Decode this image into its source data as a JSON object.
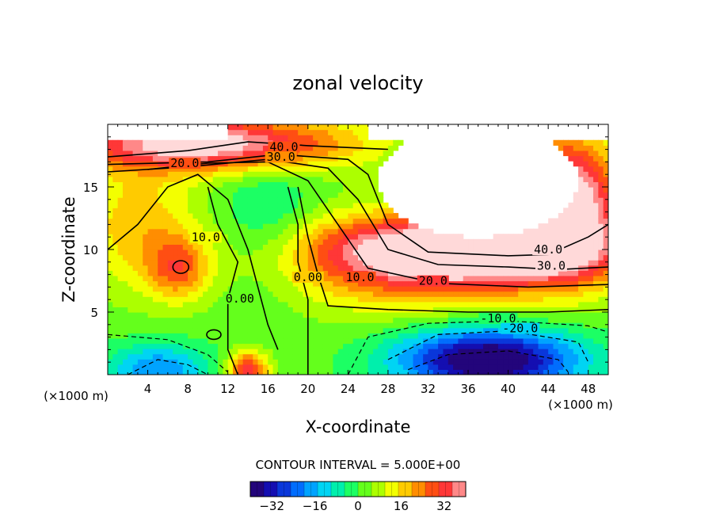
{
  "chart_data": {
    "type": "heatmap",
    "title": "zonal velocity",
    "xlabel": "X-coordinate",
    "ylabel": "Z-coordinate",
    "x_unit_left": "(×1000 m)",
    "x_unit_right": "(×1000 m)",
    "xlim": [
      0,
      50
    ],
    "ylim": [
      0,
      20
    ],
    "x_ticks": [
      "4",
      "8",
      "12",
      "16",
      "20",
      "24",
      "28",
      "32",
      "36",
      "40",
      "44",
      "48"
    ],
    "x_tick_values": [
      4,
      8,
      12,
      16,
      20,
      24,
      28,
      32,
      36,
      40,
      44,
      48
    ],
    "y_ticks": [
      "5",
      "10",
      "15"
    ],
    "y_tick_values": [
      5,
      10,
      15
    ],
    "contour_interval_label": "CONTOUR INTERVAL = 5.000E+00",
    "contour_interval": 5,
    "contour_labels": [
      {
        "text": "40.0",
        "x": 17.6,
        "y": 18.0
      },
      {
        "text": "30.0",
        "x": 17.3,
        "y": 17.2
      },
      {
        "text": "20.0",
        "x": 7.7,
        "y": 16.7
      },
      {
        "text": "10.0",
        "x": 9.8,
        "y": 10.8
      },
      {
        "text": "0.00",
        "x": 20.0,
        "y": 7.6
      },
      {
        "text": "0.00",
        "x": 13.2,
        "y": 5.9
      },
      {
        "text": "10.0",
        "x": 25.2,
        "y": 7.6
      },
      {
        "text": "20.0",
        "x": 32.5,
        "y": 7.3
      },
      {
        "text": "40.0",
        "x": 44.0,
        "y": 9.8
      },
      {
        "text": "30.0",
        "x": 44.3,
        "y": 8.5
      },
      {
        "text": "-10.0",
        "x": 39.0,
        "y": 4.3
      },
      {
        "text": "-20.0",
        "x": 41.2,
        "y": 3.5
      }
    ],
    "colorbar": {
      "range": [
        -40,
        40
      ],
      "ticks": [
        "-32",
        "-16",
        "0",
        "16",
        "32"
      ],
      "tick_values": [
        -32,
        -16,
        0,
        16,
        32
      ]
    },
    "colorscale": [
      "#2a0060",
      "#1010c0",
      "#0070ff",
      "#00d0ff",
      "#00ff80",
      "#80ff00",
      "#ffff00",
      "#ff9000",
      "#ff2020",
      "#ffb0b0"
    ]
  }
}
